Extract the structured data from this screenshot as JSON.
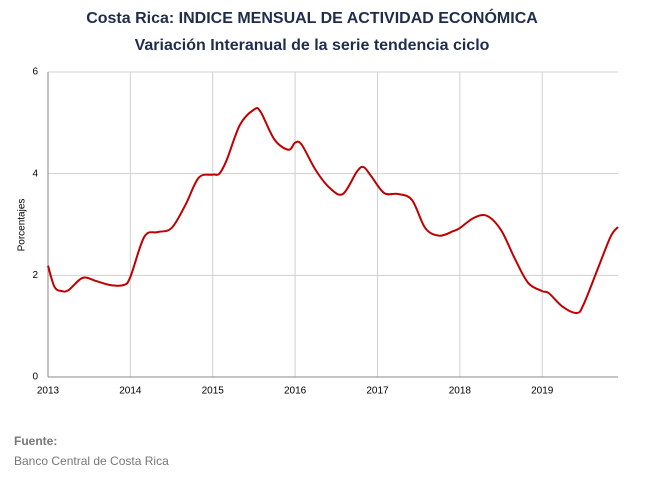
{
  "chart_data": {
    "type": "line",
    "title": "Costa Rica: INDICE MENSUAL DE ACTIVIDAD ECONÓMICA",
    "subtitle": "Variación Interanual de la serie tendencia ciclo",
    "y_label": "Porcentajes",
    "source_label": "Fuente:",
    "source": "Banco Central de Costa Rica",
    "x": [
      2013.0,
      2013.08,
      2013.17,
      2013.25,
      2013.42,
      2013.58,
      2013.75,
      2013.92,
      2014.0,
      2014.17,
      2014.33,
      2014.5,
      2014.67,
      2014.83,
      2015.0,
      2015.08,
      2015.17,
      2015.33,
      2015.5,
      2015.58,
      2015.75,
      2015.92,
      2016.0,
      2016.08,
      2016.25,
      2016.42,
      2016.58,
      2016.75,
      2016.83,
      2016.92,
      2017.08,
      2017.25,
      2017.42,
      2017.58,
      2017.75,
      2017.92,
      2018.0,
      2018.17,
      2018.33,
      2018.5,
      2018.67,
      2018.83,
      2019.0,
      2019.08,
      2019.25,
      2019.42,
      2019.5,
      2019.67,
      2019.83,
      2019.92
    ],
    "series": [
      {
        "name": "Variación interanual",
        "color": "#c00000",
        "values": [
          2.19,
          1.77,
          1.69,
          1.71,
          1.95,
          1.89,
          1.81,
          1.81,
          1.97,
          2.76,
          2.85,
          2.93,
          3.39,
          3.92,
          3.98,
          4.0,
          4.27,
          4.96,
          5.26,
          5.22,
          4.67,
          4.47,
          4.61,
          4.57,
          4.07,
          3.72,
          3.6,
          4.04,
          4.13,
          3.96,
          3.62,
          3.6,
          3.48,
          2.93,
          2.78,
          2.87,
          2.93,
          3.13,
          3.17,
          2.89,
          2.32,
          1.85,
          1.69,
          1.65,
          1.38,
          1.26,
          1.42,
          2.11,
          2.76,
          2.95
        ]
      }
    ],
    "xlim": [
      2013,
      2019.92
    ],
    "xticks": [
      2013,
      2014,
      2015,
      2016,
      2017,
      2018,
      2019
    ],
    "ylim": [
      0,
      6
    ],
    "yticks": [
      0,
      2,
      4,
      6
    ],
    "grid": true
  }
}
